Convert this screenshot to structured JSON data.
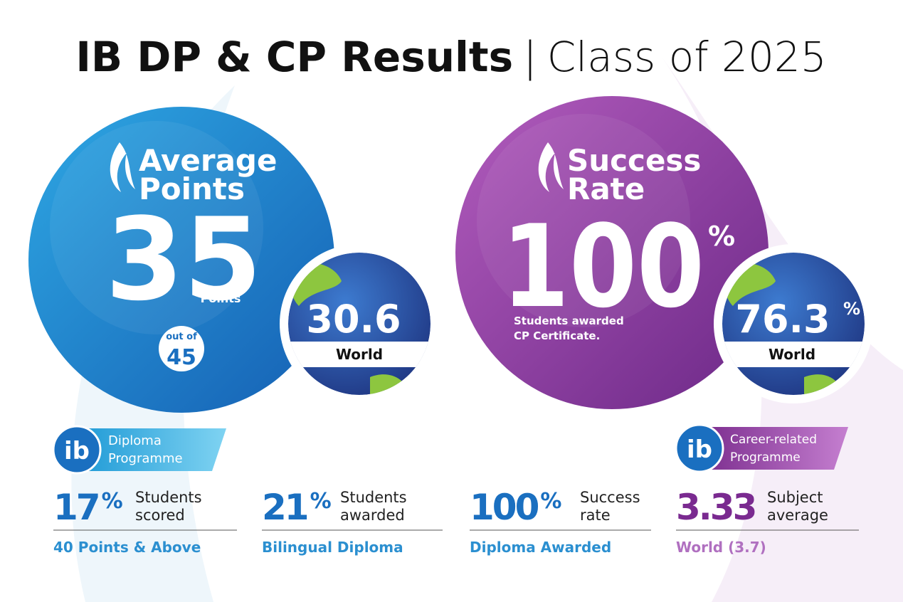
{
  "header": {
    "title": "IB DP & CP Results",
    "separator": "|",
    "subtitle": "Class of 2025"
  },
  "average_points": {
    "heading": [
      "Average",
      "Points"
    ],
    "value": "35",
    "unit": "Points",
    "out_of_label": "out of",
    "out_of_value": "45",
    "world": {
      "value": "30.6",
      "label": "World"
    }
  },
  "success_rate": {
    "heading": [
      "Success",
      "Rate"
    ],
    "value": "100",
    "unit": "%",
    "caption": [
      "Students awarded",
      "CP Certificate."
    ],
    "world": {
      "value": "76.3",
      "unit": "%",
      "label": "World"
    }
  },
  "programmes": {
    "diploma": {
      "logo": "ib",
      "name": [
        "Diploma",
        "Programme"
      ]
    },
    "career": {
      "logo": "ib",
      "name": [
        "Career-related",
        "Programme"
      ]
    }
  },
  "stats": [
    {
      "value": "17",
      "unit": "%",
      "text": [
        "Students",
        "scored"
      ],
      "caption": "40 Points & Above"
    },
    {
      "value": "21",
      "unit": "%",
      "text": [
        "Students",
        "awarded"
      ],
      "caption": "Bilingual Diploma"
    },
    {
      "value": "100",
      "unit": "%",
      "text": [
        "Success",
        "rate"
      ],
      "caption": "Diploma Awarded"
    },
    {
      "value": "3.33",
      "text": [
        "Subject",
        "average"
      ],
      "caption": "World (3.7)"
    }
  ]
}
